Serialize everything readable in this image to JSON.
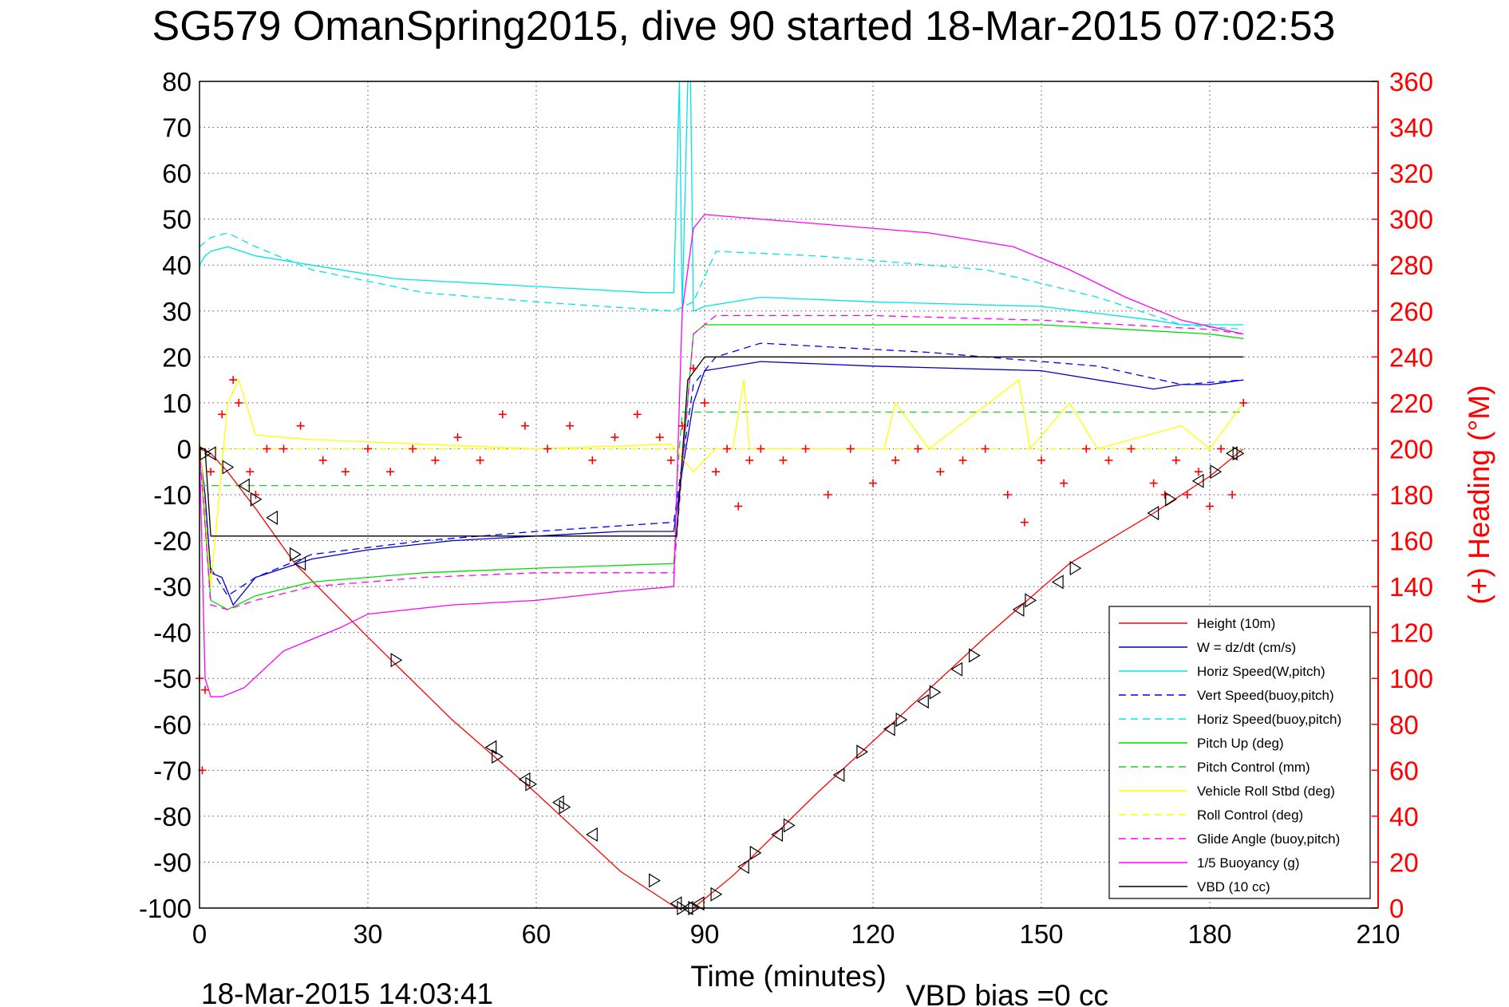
{
  "chart_data": {
    "type": "line",
    "title": "SG579 OmanSpring2015, dive 90 started 18-Mar-2015 07:02:53",
    "xlabel": "Time (minutes)",
    "ylabel": "",
    "y2label": "(+) Heading (°M)",
    "xlim": [
      0,
      210
    ],
    "ylim": [
      -100,
      80
    ],
    "y2lim": [
      0,
      360
    ],
    "xticks": [
      "0",
      "30",
      "60",
      "90",
      "120",
      "150",
      "180",
      "210"
    ],
    "yticks": [
      "80",
      "70",
      "60",
      "50",
      "40",
      "30",
      "20",
      "10",
      "0",
      "-10",
      "-20",
      "-30",
      "-40",
      "-50",
      "-60",
      "-70",
      "-80",
      "-90",
      "-100"
    ],
    "y2ticks": [
      "360",
      "340",
      "320",
      "300",
      "280",
      "260",
      "240",
      "220",
      "200",
      "180",
      "160",
      "140",
      "120",
      "100",
      "80",
      "60",
      "40",
      "20",
      "0"
    ],
    "grid": true,
    "legend_position": "bottom-right",
    "footer_left": "18-Mar-2015 14:03:41",
    "footer_right": "VBD bias =0 cc",
    "series": [
      {
        "name": "Height (10m)",
        "color": "#ff0000",
        "style": "solid",
        "x": [
          0,
          2,
          5,
          10,
          17,
          30,
          45,
          60,
          75,
          85,
          88,
          95,
          110,
          125,
          140,
          155,
          170,
          180,
          186
        ],
        "y": [
          0,
          -1,
          -5,
          -13,
          -25,
          -41,
          -59,
          -75,
          -92,
          -100,
          -100,
          -93,
          -75,
          -58,
          -41,
          -25,
          -14,
          -6,
          0
        ]
      },
      {
        "name": "W = dz/dt (cm/s)",
        "color": "#0000cc",
        "style": "solid",
        "x": [
          0,
          1,
          2,
          4,
          6,
          10,
          20,
          30,
          45,
          60,
          75,
          84.5,
          86,
          88,
          90,
          100,
          120,
          150,
          170,
          175,
          180,
          186
        ],
        "y": [
          0,
          -10,
          -27,
          -28,
          -34,
          -28,
          -24,
          -22,
          -20,
          -19,
          -18,
          -18,
          -5,
          10,
          17,
          19,
          18,
          17,
          13,
          14,
          14,
          15
        ]
      },
      {
        "name": "Horiz Speed(W,pitch)",
        "color": "#00e5e5",
        "style": "solid",
        "x": [
          0,
          1,
          2,
          5,
          10,
          20,
          35,
          50,
          65,
          80,
          84.5,
          85.5,
          86,
          87,
          87.5,
          88,
          90,
          100,
          120,
          150,
          170,
          175,
          180,
          186
        ],
        "y": [
          40,
          42,
          43,
          44,
          42,
          40,
          37,
          36,
          35,
          34,
          34,
          80,
          30,
          80,
          80,
          30,
          31,
          33,
          32,
          31,
          28,
          27,
          27,
          27
        ]
      },
      {
        "name": "Vert Speed(buoy,pitch)",
        "color": "#0000ff",
        "style": "dashed",
        "x": [
          0,
          2,
          5,
          10,
          20,
          40,
          60,
          84.5,
          88,
          92,
          100,
          130,
          160,
          175,
          186
        ],
        "y": [
          0,
          -26,
          -32,
          -28,
          -23,
          -20,
          -18,
          -16,
          14,
          20,
          23,
          21,
          18,
          14,
          15
        ]
      },
      {
        "name": "Horiz Speed(buoy,pitch)",
        "color": "#00e5e5",
        "style": "dashed",
        "x": [
          0,
          2,
          5,
          10,
          20,
          40,
          60,
          84.5,
          88,
          92,
          110,
          140,
          160,
          175,
          186
        ],
        "y": [
          44,
          46,
          47,
          44,
          39,
          34,
          32,
          30,
          32,
          43,
          42,
          39,
          33,
          27,
          26
        ]
      },
      {
        "name": "Pitch Up (deg)",
        "color": "#00dd00",
        "style": "solid",
        "x": [
          0,
          2,
          5,
          10,
          20,
          40,
          60,
          84.5,
          88,
          90,
          120,
          150,
          180,
          186
        ],
        "y": [
          0,
          -33,
          -35,
          -32,
          -29,
          -27,
          -26,
          -25,
          25,
          27,
          27,
          27,
          25,
          24
        ]
      },
      {
        "name": "Pitch Control (mm)",
        "color": "#22cc22",
        "style": "dashed",
        "x": [
          0,
          1,
          85,
          86,
          186
        ],
        "y": [
          -8,
          -8,
          -8,
          8,
          8
        ]
      },
      {
        "name": "Vehicle Roll Stbd (deg)",
        "color": "#ffff00",
        "style": "solid",
        "x": [
          0,
          2,
          5,
          7,
          10,
          20,
          40,
          60,
          84,
          88,
          92,
          95,
          97,
          98,
          110,
          122,
          124,
          130,
          146,
          148,
          155,
          160,
          175,
          180,
          186
        ],
        "y": [
          2,
          -30,
          10,
          15,
          3,
          2,
          1,
          0,
          1,
          -5,
          0,
          0,
          15,
          0,
          0,
          0,
          10,
          0,
          15,
          0,
          10,
          0,
          5,
          0,
          10
        ]
      },
      {
        "name": "Roll Control (deg)",
        "color": "#ffff00",
        "style": "dashed",
        "x": [
          0,
          40,
          84,
          86,
          150,
          186
        ],
        "y": [
          0,
          0,
          0,
          0,
          0,
          0
        ]
      },
      {
        "name": "Glide Angle (buoy,pitch)",
        "color": "#ff00ff",
        "style": "dashed",
        "x": [
          0,
          2,
          5,
          10,
          20,
          40,
          60,
          84.5,
          88,
          92,
          120,
          150,
          180,
          186
        ],
        "y": [
          0,
          -34,
          -35,
          -33,
          -30,
          -28,
          -27,
          -27,
          25,
          29,
          29,
          28,
          26,
          25
        ]
      },
      {
        "name": "1/5 Buoyancy (g)",
        "color": "#ff00ff",
        "style": "solid",
        "x": [
          0,
          1,
          2,
          4,
          8,
          15,
          25,
          30,
          45,
          60,
          75,
          84.5,
          86,
          88,
          90,
          110,
          130,
          145,
          155,
          165,
          175,
          186
        ],
        "y": [
          0,
          -50,
          -54,
          -54,
          -52,
          -44,
          -39,
          -36,
          -34,
          -33,
          -31,
          -30,
          30,
          48,
          51,
          49,
          47,
          44,
          39,
          33,
          28,
          25
        ]
      },
      {
        "name": "VBD (10 cc)",
        "color": "#000000",
        "style": "solid",
        "x": [
          0,
          1,
          2,
          84.5,
          85,
          87,
          90,
          186
        ],
        "y": [
          0,
          0,
          -19,
          -19,
          -19,
          15,
          20,
          20
        ]
      }
    ],
    "heading": {
      "name": "Heading",
      "color": "#ff0000",
      "marker": "+",
      "x": [
        0,
        0.5,
        1,
        2,
        4,
        6,
        7,
        9,
        10,
        12,
        15,
        18,
        22,
        26,
        30,
        34,
        38,
        42,
        46,
        50,
        54,
        58,
        62,
        66,
        70,
        74,
        78,
        82,
        84,
        86,
        88,
        90,
        92,
        94,
        96,
        98,
        100,
        104,
        108,
        112,
        116,
        120,
        124,
        128,
        132,
        136,
        140,
        144,
        147,
        150,
        154,
        158,
        162,
        166,
        170,
        172,
        174,
        176,
        178,
        180,
        182,
        184,
        186
      ],
      "y": [
        100,
        60,
        95,
        190,
        215,
        230,
        220,
        190,
        180,
        200,
        200,
        210,
        195,
        190,
        200,
        190,
        200,
        195,
        205,
        195,
        215,
        210,
        200,
        210,
        195,
        205,
        215,
        205,
        195,
        210,
        235,
        220,
        190,
        200,
        175,
        195,
        200,
        195,
        200,
        180,
        200,
        185,
        195,
        200,
        190,
        195,
        200,
        180,
        168,
        195,
        185,
        200,
        195,
        200,
        185,
        180,
        195,
        180,
        190,
        175,
        200,
        180,
        220
      ]
    },
    "triangles": {
      "color": "#000000",
      "marker": "triangle",
      "x": [
        1,
        2,
        5,
        8,
        10,
        13,
        17,
        18,
        35,
        52,
        53,
        58,
        59,
        64,
        65,
        70,
        81,
        85,
        86,
        87,
        88,
        89,
        92,
        97,
        99,
        103,
        105,
        114,
        118,
        123,
        125,
        129,
        131,
        135,
        138,
        146,
        148,
        153,
        156,
        170,
        173,
        178,
        181,
        184,
        185
      ],
      "y": [
        -1,
        -1,
        -4,
        -8,
        -11,
        -15,
        -23,
        -25,
        -46,
        -65,
        -67,
        -72,
        -73,
        -77,
        -78,
        -84,
        -94,
        -99,
        -100,
        -100,
        -100,
        -99,
        -97,
        -91,
        -88,
        -84,
        -82,
        -71,
        -66,
        -61,
        -59,
        -55,
        -53,
        -48,
        -45,
        -35,
        -33,
        -29,
        -26,
        -14,
        -11,
        -7,
        -5,
        -1,
        -1
      ]
    }
  }
}
